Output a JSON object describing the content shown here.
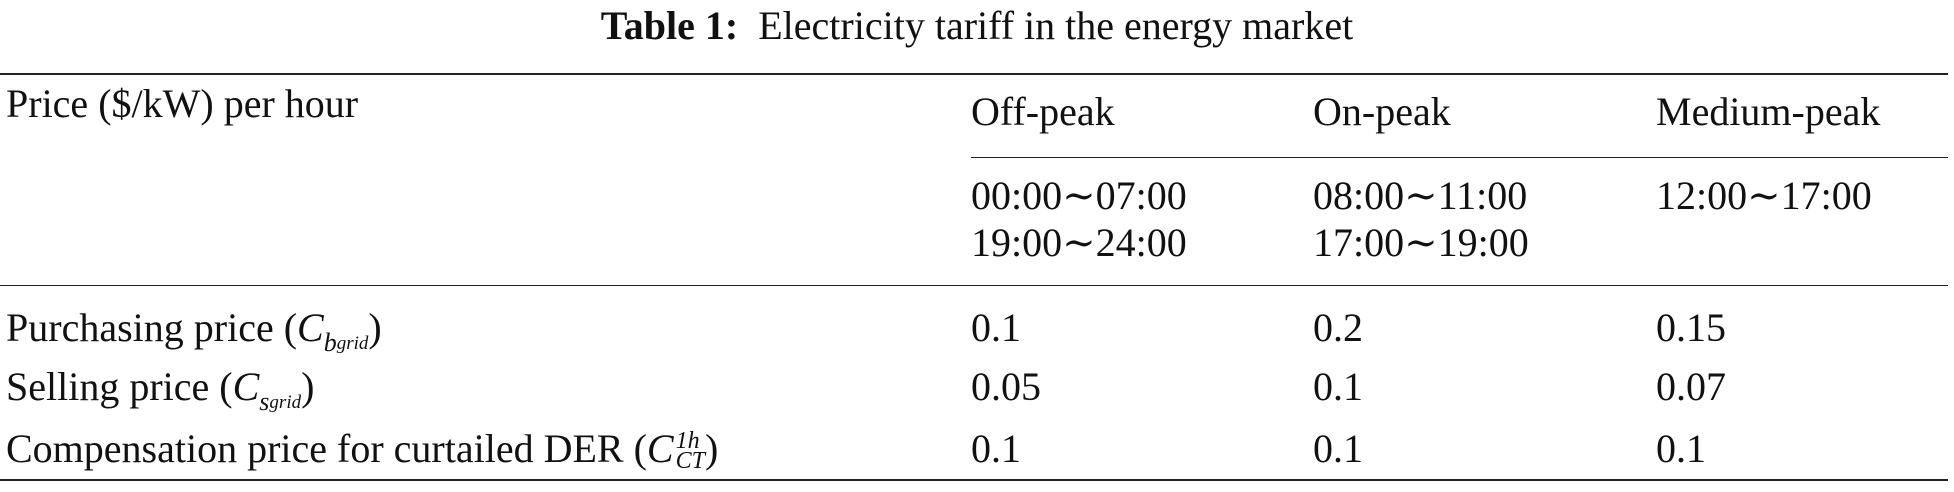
{
  "caption": {
    "label": "Table 1:",
    "text": "Electricity tariff in the energy market"
  },
  "table": {
    "header": [
      "Price ($/kW) per hour",
      "Off-peak",
      "On-peak",
      "Medium-peak"
    ],
    "periods": [
      [
        "00:00∼07:00",
        "19:00∼24:00"
      ],
      [
        "08:00∼11:00",
        "17:00∼19:00"
      ],
      [
        "12:00∼17:00"
      ]
    ],
    "rows": [
      {
        "label": "Purchasing price (",
        "symbol": "C",
        "sub": "b",
        "subsub": "grid",
        "close": ")",
        "values": [
          0.1,
          0.2,
          0.15
        ]
      },
      {
        "label": "Selling price (",
        "symbol": "C",
        "sub": "s",
        "subsub": "grid",
        "close": ")",
        "values": [
          0.05,
          0.1,
          0.07
        ]
      },
      {
        "label": "Compensation price for curtailed DER (",
        "symbol": "C",
        "sup": "1h",
        "sub": "CT",
        "close": ")",
        "values": [
          0.1,
          0.1,
          0.1
        ]
      }
    ]
  }
}
